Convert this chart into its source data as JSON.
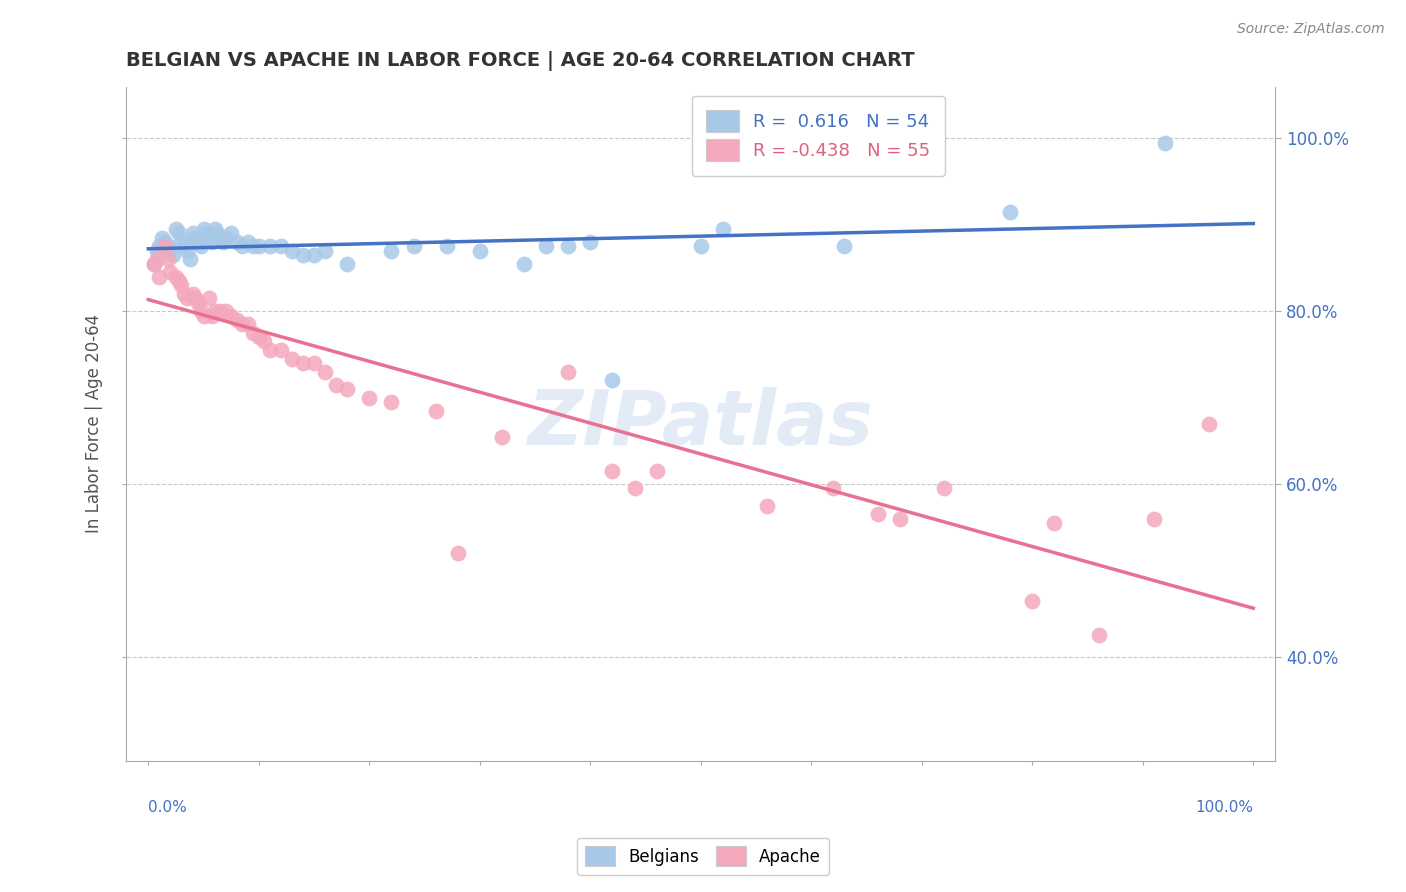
{
  "title": "BELGIAN VS APACHE IN LABOR FORCE | AGE 20-64 CORRELATION CHART",
  "source_text": "Source: ZipAtlas.com",
  "ylabel": "In Labor Force | Age 20-64",
  "xlim": [
    -0.02,
    1.02
  ],
  "ylim": [
    0.28,
    1.06
  ],
  "ytick_positions": [
    0.4,
    0.6,
    0.8,
    1.0
  ],
  "yticklabels": [
    "40.0%",
    "60.0%",
    "80.0%",
    "100.0%"
  ],
  "belgian_color": "#a8c8e8",
  "apache_color": "#f4a8bc",
  "belgian_line_color": "#4472c4",
  "apache_line_color": "#e87090",
  "r_belgian": 0.616,
  "n_belgian": 54,
  "r_apache": -0.438,
  "n_apache": 55,
  "legend_r_color": "#4472c4",
  "legend_r2_color": "#e06080",
  "watermark": "ZIPatlas",
  "grid_color": "#c8c8d0",
  "belgian_x": [
    0.005,
    0.008,
    0.01,
    0.012,
    0.015,
    0.018,
    0.02,
    0.022,
    0.025,
    0.028,
    0.03,
    0.032,
    0.035,
    0.038,
    0.04,
    0.042,
    0.045,
    0.048,
    0.05,
    0.052,
    0.055,
    0.058,
    0.06,
    0.062,
    0.065,
    0.068,
    0.07,
    0.075,
    0.08,
    0.085,
    0.09,
    0.095,
    0.1,
    0.11,
    0.12,
    0.13,
    0.14,
    0.15,
    0.16,
    0.18,
    0.22,
    0.24,
    0.27,
    0.3,
    0.34,
    0.36,
    0.38,
    0.4,
    0.42,
    0.5,
    0.52,
    0.63,
    0.78,
    0.92
  ],
  "belgian_y": [
    0.855,
    0.87,
    0.875,
    0.885,
    0.88,
    0.875,
    0.87,
    0.865,
    0.895,
    0.89,
    0.88,
    0.875,
    0.87,
    0.86,
    0.89,
    0.885,
    0.88,
    0.875,
    0.895,
    0.89,
    0.885,
    0.88,
    0.895,
    0.89,
    0.885,
    0.88,
    0.885,
    0.89,
    0.88,
    0.875,
    0.88,
    0.875,
    0.875,
    0.875,
    0.875,
    0.87,
    0.865,
    0.865,
    0.87,
    0.855,
    0.87,
    0.875,
    0.875,
    0.87,
    0.855,
    0.875,
    0.875,
    0.88,
    0.72,
    0.875,
    0.895,
    0.875,
    0.915,
    0.995
  ],
  "apache_x": [
    0.005,
    0.008,
    0.01,
    0.015,
    0.018,
    0.02,
    0.025,
    0.028,
    0.03,
    0.032,
    0.035,
    0.04,
    0.042,
    0.045,
    0.048,
    0.05,
    0.055,
    0.058,
    0.06,
    0.065,
    0.07,
    0.075,
    0.08,
    0.085,
    0.09,
    0.095,
    0.1,
    0.105,
    0.11,
    0.12,
    0.13,
    0.14,
    0.15,
    0.16,
    0.17,
    0.18,
    0.2,
    0.22,
    0.26,
    0.28,
    0.32,
    0.38,
    0.42,
    0.44,
    0.46,
    0.56,
    0.62,
    0.66,
    0.68,
    0.72,
    0.8,
    0.82,
    0.86,
    0.91,
    0.96
  ],
  "apache_y": [
    0.855,
    0.86,
    0.84,
    0.875,
    0.86,
    0.845,
    0.84,
    0.835,
    0.83,
    0.82,
    0.815,
    0.82,
    0.815,
    0.81,
    0.8,
    0.795,
    0.815,
    0.795,
    0.8,
    0.8,
    0.8,
    0.795,
    0.79,
    0.785,
    0.785,
    0.775,
    0.77,
    0.765,
    0.755,
    0.755,
    0.745,
    0.74,
    0.74,
    0.73,
    0.715,
    0.71,
    0.7,
    0.695,
    0.685,
    0.52,
    0.655,
    0.73,
    0.615,
    0.595,
    0.615,
    0.575,
    0.595,
    0.565,
    0.56,
    0.595,
    0.465,
    0.555,
    0.425,
    0.56,
    0.67
  ]
}
